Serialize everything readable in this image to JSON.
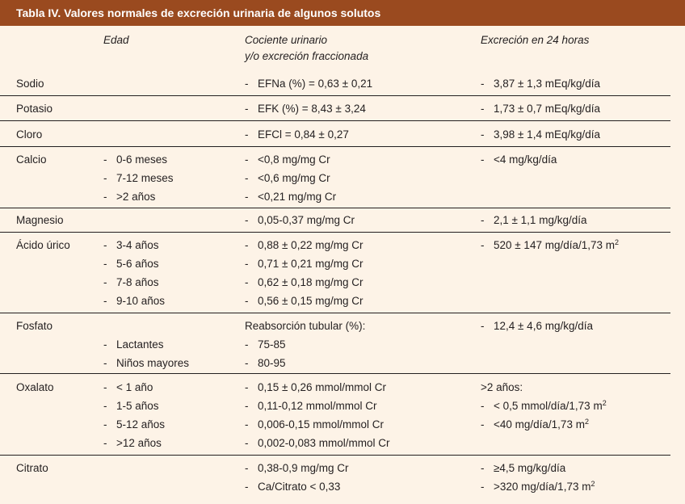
{
  "title": "Tabla IV. Valores normales de excreción urinaria de algunos solutos",
  "headers": {
    "age": "Edad",
    "ratio_line1": "Cociente urinario",
    "ratio_line2": "y/o excreción fraccionada",
    "excretion": "Excreción en 24 horas"
  },
  "rows": [
    {
      "name": "Sodio",
      "age": [],
      "ratio": [
        {
          "dash": true,
          "text": "EFNa (%) = 0,63 ± 0,21"
        }
      ],
      "excretion": [
        {
          "dash": true,
          "text": "3,87 ± 1,3 mEq/kg/día"
        }
      ]
    },
    {
      "name": "Potasio",
      "age": [],
      "ratio": [
        {
          "dash": true,
          "text": "EFK (%) = 8,43 ± 3,24"
        }
      ],
      "excretion": [
        {
          "dash": true,
          "text": "1,73 ± 0,7 mEq/kg/día"
        }
      ]
    },
    {
      "name": "Cloro",
      "age": [],
      "ratio": [
        {
          "dash": true,
          "text": "EFCl = 0,84 ± 0,27"
        }
      ],
      "excretion": [
        {
          "dash": true,
          "text": "3,98 ± 1,4 mEq/kg/día"
        }
      ]
    },
    {
      "name": "Calcio",
      "age": [
        {
          "dash": true,
          "text": "0-6 meses"
        },
        {
          "dash": true,
          "text": "7-12 meses"
        },
        {
          "dash": true,
          "text": ">2 años"
        }
      ],
      "ratio": [
        {
          "dash": true,
          "text": "<0,8 mg/mg Cr"
        },
        {
          "dash": true,
          "text": "<0,6 mg/mg Cr"
        },
        {
          "dash": true,
          "text": "<0,21 mg/mg Cr"
        }
      ],
      "excretion": [
        {
          "dash": true,
          "text": "<4 mg/kg/día"
        }
      ]
    },
    {
      "name": "Magnesio",
      "age": [],
      "ratio": [
        {
          "dash": true,
          "text": "0,05-0,37 mg/mg Cr"
        }
      ],
      "excretion": [
        {
          "dash": true,
          "text": "2,1 ± 1,1 mg/kg/día"
        }
      ]
    },
    {
      "name": "Ácido úrico",
      "age": [
        {
          "dash": true,
          "text": "3-4 años"
        },
        {
          "dash": true,
          "text": "5-6 años"
        },
        {
          "dash": true,
          "text": "7-8 años"
        },
        {
          "dash": true,
          "text": "9-10 años"
        }
      ],
      "ratio": [
        {
          "dash": true,
          "text": "0,88 ± 0,22 mg/mg Cr"
        },
        {
          "dash": true,
          "text": "0,71 ± 0,21 mg/mg Cr"
        },
        {
          "dash": true,
          "text": "0,62 ± 0,18 mg/mg Cr"
        },
        {
          "dash": true,
          "text": "0,56 ± 0,15 mg/mg Cr"
        }
      ],
      "excretion": [
        {
          "dash": true,
          "text": "520 ± 147 mg/día/1,73 m",
          "sup": "2"
        }
      ]
    },
    {
      "name": "Fosfato",
      "age": [
        {
          "dash": false,
          "text": ""
        },
        {
          "dash": true,
          "text": "Lactantes"
        },
        {
          "dash": true,
          "text": "Niños mayores"
        }
      ],
      "ratio": [
        {
          "dash": false,
          "text": "Reabsorción tubular (%):"
        },
        {
          "dash": true,
          "text": "75-85"
        },
        {
          "dash": true,
          "text": "80-95"
        }
      ],
      "excretion": [
        {
          "dash": true,
          "text": "12,4 ± 4,6 mg/kg/día"
        }
      ]
    },
    {
      "name": "Oxalato",
      "age": [
        {
          "dash": true,
          "text": "< 1 año"
        },
        {
          "dash": true,
          "text": "1-5 años"
        },
        {
          "dash": true,
          "text": "5-12 años"
        },
        {
          "dash": true,
          "text": ">12 años"
        }
      ],
      "ratio": [
        {
          "dash": true,
          "text": "0,15 ± 0,26 mmol/mmol Cr"
        },
        {
          "dash": true,
          "text": "0,11-0,12 mmol/mmol Cr"
        },
        {
          "dash": true,
          "text": "0,006-0,15 mmol/mmol Cr"
        },
        {
          "dash": true,
          "text": "0,002-0,083 mmol/mmol Cr"
        }
      ],
      "excretion": [
        {
          "dash": false,
          "text": ">2 años:"
        },
        {
          "dash": true,
          "text": "< 0,5 mmol/día/1,73 m",
          "sup": "2"
        },
        {
          "dash": true,
          "text": "<40 mg/día/1,73 m",
          "sup": "2"
        }
      ]
    },
    {
      "name": "Citrato",
      "age": [],
      "ratio": [
        {
          "dash": true,
          "text": "0,38-0,9 mg/mg Cr"
        },
        {
          "dash": true,
          "text": "Ca/Citrato < 0,33"
        }
      ],
      "excretion": [
        {
          "dash": true,
          "text": "≥4,5 mg/kg/día"
        },
        {
          "dash": true,
          "text": ">320 mg/día/1,73 m",
          "sup": "2"
        }
      ]
    }
  ]
}
